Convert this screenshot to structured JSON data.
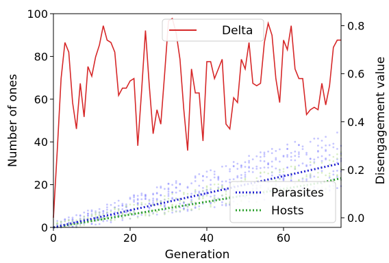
{
  "chart_data": {
    "type": "line",
    "xlabel": "Generation",
    "ylabel": "Number of ones",
    "y2label": "Disengagement value",
    "xlim": [
      0,
      75
    ],
    "ylim": [
      0,
      100
    ],
    "y2lim": [
      -0.04,
      0.85
    ],
    "x_ticks": [
      0,
      20,
      40,
      60
    ],
    "y_ticks": [
      0,
      20,
      40,
      60,
      80,
      100
    ],
    "y2_ticks": [
      0.0,
      0.2,
      0.4,
      0.6,
      0.8
    ],
    "grid": false,
    "legend_top": {
      "placement": "upper-center",
      "entries": [
        "Delta"
      ]
    },
    "legend_bottom": {
      "placement": "lower-right",
      "entries": [
        "Parasites",
        "Hosts"
      ]
    },
    "colors": {
      "delta": "#d62728",
      "parasites": "#1f1fd0",
      "hosts": "#2ca02c",
      "parasite_scatter": "#7f7fff",
      "host_scatter": "#bfe5a0"
    },
    "series": [
      {
        "name": "Delta",
        "axis": "right",
        "x": [
          0,
          1,
          2,
          3,
          4,
          5,
          6,
          7,
          8,
          9,
          10,
          11,
          12,
          13,
          14,
          15,
          16,
          17,
          18,
          19,
          20,
          21,
          22,
          23,
          24,
          25,
          26,
          27,
          28,
          29,
          30,
          31,
          32,
          33,
          34,
          35,
          36,
          37,
          38,
          39,
          40,
          41,
          42,
          43,
          44,
          45,
          46,
          47,
          48,
          49,
          50,
          51,
          52,
          53,
          54,
          55,
          56,
          57,
          58,
          59,
          60,
          61,
          62,
          63,
          64,
          65,
          66,
          67,
          68,
          69,
          70,
          71,
          72,
          73,
          74,
          75
        ],
        "y": [
          0.0,
          0.28,
          0.58,
          0.73,
          0.69,
          0.48,
          0.37,
          0.56,
          0.42,
          0.63,
          0.59,
          0.67,
          0.72,
          0.8,
          0.74,
          0.73,
          0.69,
          0.51,
          0.54,
          0.54,
          0.57,
          0.58,
          0.3,
          0.53,
          0.78,
          0.55,
          0.35,
          0.45,
          0.39,
          0.6,
          0.82,
          0.83,
          0.77,
          0.66,
          0.45,
          0.28,
          0.62,
          0.52,
          0.52,
          0.32,
          0.65,
          0.65,
          0.58,
          0.62,
          0.66,
          0.39,
          0.37,
          0.5,
          0.48,
          0.66,
          0.62,
          0.73,
          0.56,
          0.55,
          0.56,
          0.73,
          0.81,
          0.76,
          0.58,
          0.48,
          0.74,
          0.7,
          0.8,
          0.62,
          0.58,
          0.58,
          0.43,
          0.45,
          0.46,
          0.45,
          0.56,
          0.47,
          0.55,
          0.71,
          0.74,
          0.74
        ]
      },
      {
        "name": "Parasites",
        "axis": "left",
        "style": "dotted",
        "x": [
          0,
          5,
          10,
          15,
          20,
          25,
          30,
          35,
          40,
          45,
          50,
          55,
          60,
          65,
          70,
          75
        ],
        "y": [
          0,
          2,
          4,
          6,
          8,
          10,
          12,
          14,
          16,
          18,
          20,
          22,
          24,
          26,
          28,
          30
        ]
      },
      {
        "name": "Hosts",
        "axis": "left",
        "style": "dotted",
        "x": [
          0,
          5,
          10,
          15,
          20,
          25,
          30,
          35,
          40,
          45,
          50,
          55,
          60,
          65,
          70,
          75
        ],
        "y": [
          0,
          1.5,
          3,
          4.5,
          6,
          7.5,
          9,
          10.5,
          12,
          13.5,
          15,
          16.5,
          18,
          19.5,
          21,
          23
        ]
      }
    ]
  }
}
